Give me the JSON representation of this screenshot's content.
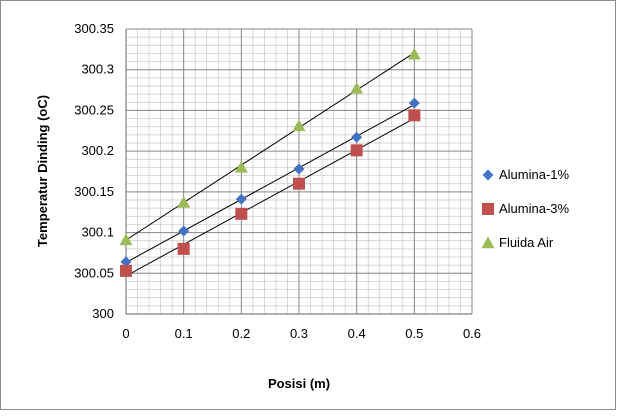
{
  "chart_data": {
    "type": "scatter",
    "title": "",
    "xlabel": "Posisi (m)",
    "ylabel": "Temperatur Dinding (oC)",
    "xlim": [
      0,
      0.6
    ],
    "ylim": [
      300,
      300.35
    ],
    "x_ticks": [
      "0",
      "0.1",
      "0.2",
      "0.3",
      "0.4",
      "0.5",
      "0.6"
    ],
    "y_ticks": [
      "300",
      "300.05",
      "300.1",
      "300.15",
      "300.2",
      "300.25",
      "300.3",
      "300.35"
    ],
    "grid": true,
    "legend_position": "right",
    "trendlines": true,
    "series": [
      {
        "name": "Alumina-1%",
        "marker": "diamond",
        "color": "#4472C4",
        "x": [
          0,
          0.1,
          0.2,
          0.3,
          0.4,
          0.5
        ],
        "y": [
          300.064,
          300.102,
          300.141,
          300.178,
          300.217,
          300.259
        ]
      },
      {
        "name": "Alumina-3%",
        "marker": "square",
        "color": "#C0504D",
        "x": [
          0,
          0.1,
          0.2,
          0.3,
          0.4,
          0.5
        ],
        "y": [
          300.053,
          300.08,
          300.123,
          300.16,
          300.201,
          300.244
        ]
      },
      {
        "name": "Fluida Air",
        "marker": "triangle",
        "color": "#9BBB59",
        "x": [
          0,
          0.1,
          0.2,
          0.3,
          0.4,
          0.5
        ],
        "y": [
          300.091,
          300.137,
          300.18,
          300.231,
          300.277,
          300.319
        ]
      }
    ]
  }
}
